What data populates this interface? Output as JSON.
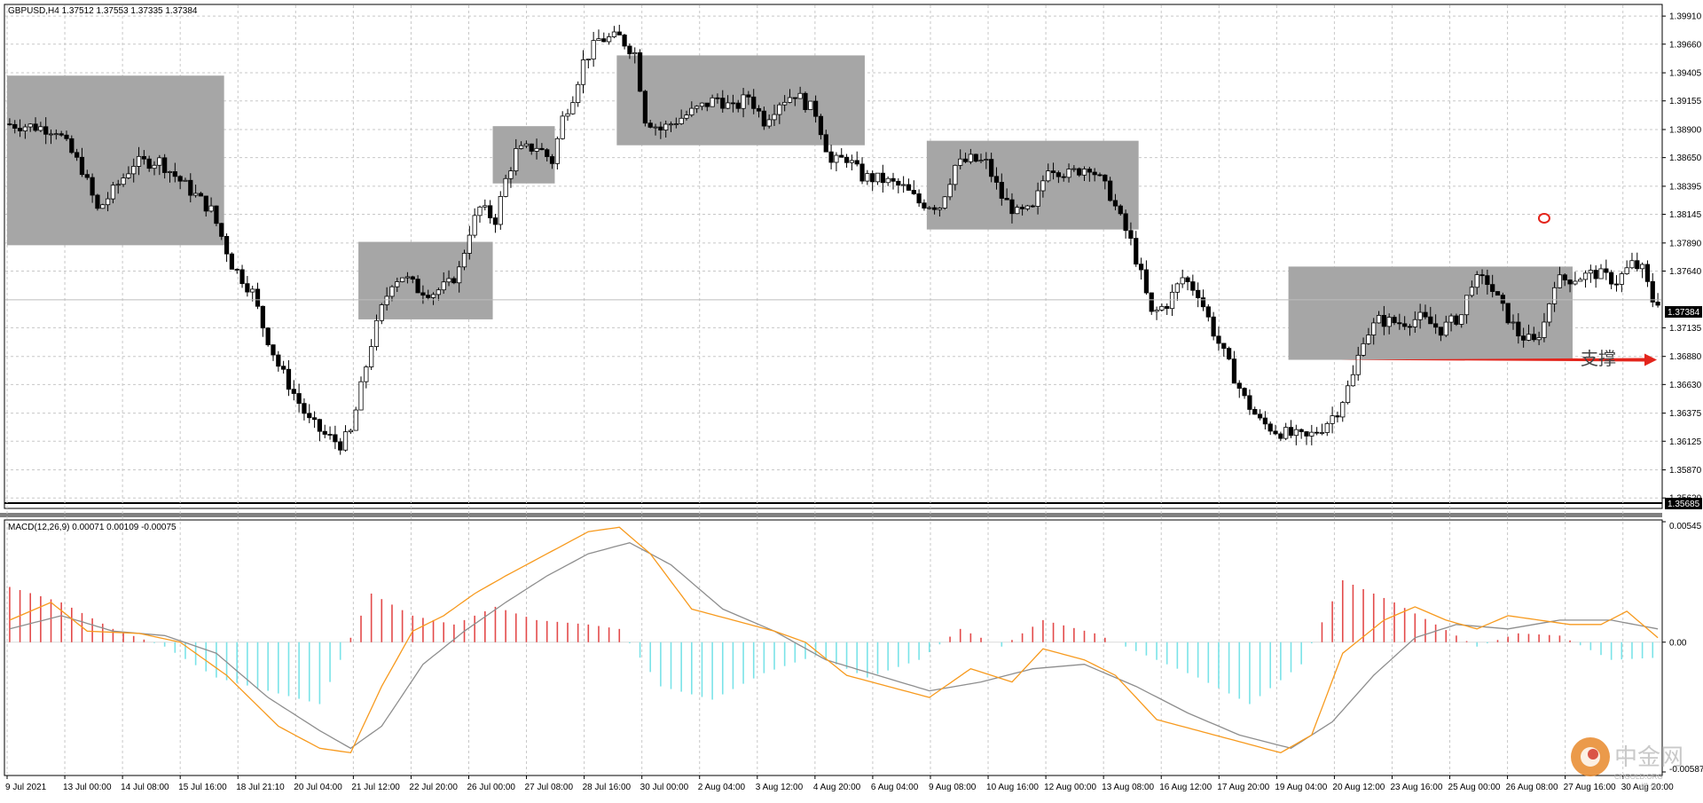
{
  "window": {
    "symbol_header": "GBPUSD,H4  1.37512 1.37553 1.37335 1.37384",
    "current_price_tag": "1.37384",
    "lower_bound_tag": "1.35685"
  },
  "colors": {
    "bull_candle": "#ffffff",
    "bear_candle": "#000000",
    "consolidation_box": "#a6a6a6",
    "macd_positive": "#e34a4a",
    "macd_negative": "#7ae3e8",
    "macd_line": "#f79a1e",
    "signal_line": "#8e8e8e",
    "annotation_red": "#e3251c",
    "grid": "#c8c8c8"
  },
  "annotations": {
    "support_label": "支撑"
  },
  "watermark": {
    "brand": "中金网",
    "site": "CNGOLD.ORG",
    "small": "媒 体"
  },
  "chart_data": [
    {
      "type": "candlestick",
      "title": "GBPUSD,H4",
      "ohlc_last": {
        "open": 1.37512,
        "high": 1.37553,
        "low": 1.37335,
        "close": 1.37384
      },
      "ylim": [
        1.3559,
        1.3999
      ],
      "y_ticks": [
        "1.39910",
        "1.39660",
        "1.39405",
        "1.39155",
        "1.38900",
        "1.38650",
        "1.38395",
        "1.38145",
        "1.37890",
        "1.37640",
        "1.37135",
        "1.36880",
        "1.36630",
        "1.36375",
        "1.36125",
        "1.35870",
        "1.35620"
      ],
      "x_ticks": [
        "9 Jul 2021",
        "13 Jul 00:00",
        "14 Jul 08:00",
        "15 Jul 16:00",
        "18 Jul 21:10",
        "20 Jul 04:00",
        "21 Jul 12:00",
        "22 Jul 20:00",
        "26 Jul 00:00",
        "27 Jul 08:00",
        "28 Jul 16:00",
        "30 Jul 00:00",
        "2 Aug 04:00",
        "3 Aug 12:00",
        "4 Aug 20:00",
        "6 Aug 04:00",
        "9 Aug 08:00",
        "10 Aug 16:00",
        "12 Aug 00:00",
        "13 Aug 08:00",
        "16 Aug 12:00",
        "17 Aug 20:00",
        "19 Aug 04:00",
        "20 Aug 12:00",
        "23 Aug 16:00",
        "25 Aug 00:00",
        "26 Aug 08:00",
        "27 Aug 16:00",
        "30 Aug 20:00"
      ],
      "path_points": [
        [
          0,
          1.3895
        ],
        [
          5,
          1.3893
        ],
        [
          10,
          1.389
        ],
        [
          15,
          1.3855
        ],
        [
          18,
          1.3818
        ],
        [
          21,
          1.3835
        ],
        [
          25,
          1.386
        ],
        [
          30,
          1.3862
        ],
        [
          35,
          1.384
        ],
        [
          40,
          1.3818
        ],
        [
          42,
          1.3795
        ],
        [
          44,
          1.377
        ],
        [
          48,
          1.3745
        ],
        [
          50,
          1.3715
        ],
        [
          53,
          1.368
        ],
        [
          56,
          1.3655
        ],
        [
          59,
          1.363
        ],
        [
          62,
          1.3618
        ],
        [
          65,
          1.361
        ],
        [
          67,
          1.362
        ],
        [
          69,
          1.366
        ],
        [
          71,
          1.37
        ],
        [
          73,
          1.373
        ],
        [
          75,
          1.3755
        ],
        [
          77,
          1.376
        ],
        [
          80,
          1.3748
        ],
        [
          83,
          1.3745
        ],
        [
          86,
          1.3752
        ],
        [
          88,
          1.3765
        ],
        [
          90,
          1.38
        ],
        [
          92,
          1.382
        ],
        [
          95,
          1.381
        ],
        [
          97,
          1.3845
        ],
        [
          99,
          1.387
        ],
        [
          103,
          1.3875
        ],
        [
          106,
          1.3862
        ],
        [
          108,
          1.39
        ],
        [
          110,
          1.392
        ],
        [
          112,
          1.395
        ],
        [
          115,
          1.397
        ],
        [
          119,
          1.3972
        ],
        [
          122,
          1.3958
        ],
        [
          124,
          1.39
        ],
        [
          127,
          1.389
        ],
        [
          130,
          1.3898
        ],
        [
          134,
          1.3908
        ],
        [
          138,
          1.3918
        ],
        [
          141,
          1.3908
        ],
        [
          144,
          1.392
        ],
        [
          147,
          1.3898
        ],
        [
          150,
          1.3915
        ],
        [
          153,
          1.3922
        ],
        [
          157,
          1.3905
        ],
        [
          160,
          1.386
        ],
        [
          163,
          1.3865
        ],
        [
          166,
          1.3848
        ],
        [
          170,
          1.3845
        ],
        [
          174,
          1.3838
        ],
        [
          177,
          1.3825
        ],
        [
          181,
          1.3822
        ],
        [
          184,
          1.3858
        ],
        [
          187,
          1.3863
        ],
        [
          190,
          1.386
        ],
        [
          193,
          1.383
        ],
        [
          196,
          1.3815
        ],
        [
          199,
          1.3818
        ],
        [
          202,
          1.3858
        ],
        [
          206,
          1.385
        ],
        [
          210,
          1.3858
        ],
        [
          214,
          1.3832
        ],
        [
          216,
          1.381
        ],
        [
          218,
          1.379
        ],
        [
          220,
          1.376
        ],
        [
          222,
          1.3725
        ],
        [
          225,
          1.3735
        ],
        [
          228,
          1.3758
        ],
        [
          231,
          1.3745
        ],
        [
          234,
          1.371
        ],
        [
          237,
          1.368
        ],
        [
          240,
          1.365
        ],
        [
          243,
          1.363
        ],
        [
          246,
          1.3622
        ],
        [
          249,
          1.3618
        ],
        [
          252,
          1.3615
        ],
        [
          255,
          1.3625
        ],
        [
          258,
          1.364
        ],
        [
          261,
          1.367
        ],
        [
          263,
          1.3705
        ],
        [
          266,
          1.372
        ],
        [
          270,
          1.3718
        ],
        [
          274,
          1.3722
        ],
        [
          278,
          1.3712
        ],
        [
          282,
          1.3725
        ],
        [
          284,
          1.3755
        ],
        [
          287,
          1.3755
        ],
        [
          290,
          1.373
        ],
        [
          293,
          1.3708
        ],
        [
          296,
          1.37
        ],
        [
          298,
          1.3718
        ],
        [
          300,
          1.3755
        ],
        [
          304,
          1.3758
        ],
        [
          308,
          1.3762
        ],
        [
          312,
          1.3755
        ],
        [
          315,
          1.377
        ],
        [
          317,
          1.3765
        ],
        [
          319,
          1.3738
        ]
      ],
      "consolidation_zones": [
        {
          "from_bar": 0,
          "to_bar": 42,
          "low": 1.3787,
          "high": 1.3938
        },
        {
          "from_bar": 68,
          "to_bar": 94,
          "low": 1.3721,
          "high": 1.379
        },
        {
          "from_bar": 94,
          "to_bar": 106,
          "low": 1.3842,
          "high": 1.3893
        },
        {
          "from_bar": 118,
          "to_bar": 166,
          "low": 1.3876,
          "high": 1.3956
        },
        {
          "from_bar": 178,
          "to_bar": 219,
          "low": 1.3801,
          "high": 1.388
        },
        {
          "from_bar": 248,
          "to_bar": 303,
          "low": 1.3685,
          "high": 1.3768
        }
      ],
      "support_level": 1.3685,
      "marked_high_bar": 297
    },
    {
      "type": "bar",
      "title": "MACD(12,26,9) 0.00071 0.00109 -0.00075",
      "indicator": "MACD",
      "params": [
        12,
        26,
        9
      ],
      "last_values": {
        "main": 0.00071,
        "signal": 0.00109,
        "histogram": -0.00075
      },
      "ylim": [
        -0.00587,
        0.00545
      ],
      "y_ticks": [
        "0.00545",
        "0.00",
        "-0.00587"
      ],
      "macd_points": [
        [
          0,
          0.001
        ],
        [
          8,
          0.0018
        ],
        [
          15,
          0.0005
        ],
        [
          25,
          0.0004
        ],
        [
          33,
          0.0
        ],
        [
          42,
          -0.0015
        ],
        [
          52,
          -0.0038
        ],
        [
          60,
          -0.0048
        ],
        [
          66,
          -0.005
        ],
        [
          72,
          -0.002
        ],
        [
          78,
          0.0005
        ],
        [
          84,
          0.0012
        ],
        [
          90,
          0.0022
        ],
        [
          96,
          0.003
        ],
        [
          104,
          0.004
        ],
        [
          112,
          0.005
        ],
        [
          118,
          0.0052
        ],
        [
          124,
          0.004
        ],
        [
          132,
          0.0015
        ],
        [
          140,
          0.001
        ],
        [
          148,
          0.0005
        ],
        [
          154,
          0.0
        ],
        [
          162,
          -0.0015
        ],
        [
          170,
          -0.002
        ],
        [
          178,
          -0.0025
        ],
        [
          186,
          -0.0012
        ],
        [
          194,
          -0.0018
        ],
        [
          200,
          -0.0003
        ],
        [
          208,
          -0.0008
        ],
        [
          214,
          -0.0015
        ],
        [
          222,
          -0.0035
        ],
        [
          230,
          -0.004
        ],
        [
          238,
          -0.0045
        ],
        [
          246,
          -0.005
        ],
        [
          252,
          -0.0042
        ],
        [
          258,
          -0.0005
        ],
        [
          266,
          0.001
        ],
        [
          272,
          0.0016
        ],
        [
          278,
          0.001
        ],
        [
          284,
          0.0006
        ],
        [
          290,
          0.0012
        ],
        [
          296,
          0.001
        ],
        [
          302,
          0.0008
        ],
        [
          308,
          0.0008
        ],
        [
          313,
          0.0014
        ],
        [
          319,
          0.0002
        ]
      ],
      "signal_points": [
        [
          0,
          0.0006
        ],
        [
          10,
          0.0012
        ],
        [
          20,
          0.0005
        ],
        [
          30,
          0.0003
        ],
        [
          40,
          -0.0005
        ],
        [
          50,
          -0.0025
        ],
        [
          60,
          -0.004
        ],
        [
          66,
          -0.0048
        ],
        [
          72,
          -0.0038
        ],
        [
          80,
          -0.001
        ],
        [
          88,
          0.0005
        ],
        [
          96,
          0.0018
        ],
        [
          104,
          0.003
        ],
        [
          112,
          0.004
        ],
        [
          120,
          0.0045
        ],
        [
          128,
          0.0035
        ],
        [
          138,
          0.0015
        ],
        [
          148,
          0.0005
        ],
        [
          158,
          -0.0008
        ],
        [
          168,
          -0.0015
        ],
        [
          178,
          -0.0022
        ],
        [
          188,
          -0.0018
        ],
        [
          198,
          -0.0012
        ],
        [
          208,
          -0.001
        ],
        [
          218,
          -0.002
        ],
        [
          228,
          -0.0032
        ],
        [
          238,
          -0.0042
        ],
        [
          248,
          -0.0048
        ],
        [
          256,
          -0.0036
        ],
        [
          264,
          -0.0015
        ],
        [
          272,
          0.0002
        ],
        [
          280,
          0.0008
        ],
        [
          290,
          0.0006
        ],
        [
          300,
          0.001
        ],
        [
          310,
          0.001
        ],
        [
          319,
          0.0006
        ]
      ],
      "histogram_bars": [
        [
          0,
          0.0025
        ],
        [
          10,
          0.0018
        ],
        [
          20,
          0.0006
        ],
        [
          30,
          -0.0002
        ],
        [
          40,
          -0.0016
        ],
        [
          50,
          -0.0022
        ],
        [
          60,
          -0.0028
        ],
        [
          70,
          0.0022
        ],
        [
          78,
          0.0012
        ],
        [
          86,
          0.0008
        ],
        [
          94,
          0.0016
        ],
        [
          102,
          0.001
        ],
        [
          112,
          0.0008
        ],
        [
          118,
          0.0006
        ],
        [
          126,
          -0.002
        ],
        [
          136,
          -0.0026
        ],
        [
          146,
          -0.0014
        ],
        [
          156,
          -0.0006
        ],
        [
          166,
          -0.0016
        ],
        [
          176,
          -0.0008
        ],
        [
          184,
          0.0006
        ],
        [
          192,
          -0.0002
        ],
        [
          200,
          0.001
        ],
        [
          210,
          0.0004
        ],
        [
          220,
          -0.0006
        ],
        [
          230,
          -0.0016
        ],
        [
          240,
          -0.0028
        ],
        [
          250,
          -0.001
        ],
        [
          258,
          0.0028
        ],
        [
          268,
          0.0018
        ],
        [
          276,
          0.0008
        ],
        [
          284,
          -0.0002
        ],
        [
          292,
          0.0004
        ],
        [
          300,
          0.0003
        ],
        [
          310,
          -0.0008
        ],
        [
          319,
          -0.0007
        ]
      ]
    }
  ]
}
